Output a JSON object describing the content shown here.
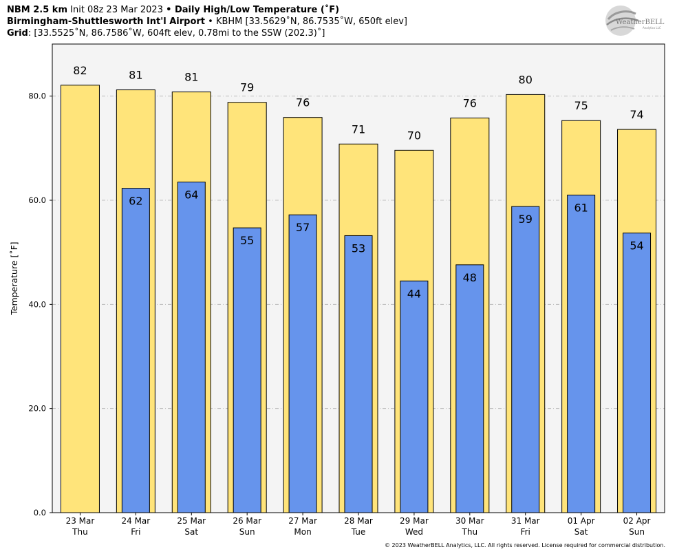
{
  "header": {
    "line1": {
      "model": "NBM 2.5 km",
      "init": " Init 08z 23 Mar 2023 ",
      "bullet": "•",
      "product": " Daily High/Low Temperature (˚F)"
    },
    "line2": {
      "station_name": "Birmingham-Shuttlesworth Int'l Airport",
      "details": " • KBHM [33.5629˚N, 86.7535˚W, 650ft elev]"
    },
    "line3": {
      "label": "Grid",
      "details": ": [33.5525˚N, 86.7586˚W, 604ft elev, 0.78mi to the SSW (202.3)˚]"
    }
  },
  "logo": {
    "text_main": "WeatherBELL",
    "text_sub": "Analytics LLC"
  },
  "copyright": "© 2023 WeatherBELL Analytics, LLC. All rights reserved. License required for commercial distribution.",
  "chart_data": {
    "type": "bar",
    "ylabel": "Temperature [˚F]",
    "xlabel": "",
    "ylim": [
      0,
      90
    ],
    "yticks": [
      0,
      20,
      40,
      60,
      80
    ],
    "ytick_labels": [
      "0.0",
      "20.0",
      "40.0",
      "60.0",
      "80.0"
    ],
    "grid": true,
    "categories": [
      {
        "date": "23 Mar",
        "day": "Thu"
      },
      {
        "date": "24 Mar",
        "day": "Fri"
      },
      {
        "date": "25 Mar",
        "day": "Sat"
      },
      {
        "date": "26 Mar",
        "day": "Sun"
      },
      {
        "date": "27 Mar",
        "day": "Mon"
      },
      {
        "date": "28 Mar",
        "day": "Tue"
      },
      {
        "date": "29 Mar",
        "day": "Wed"
      },
      {
        "date": "30 Mar",
        "day": "Thu"
      },
      {
        "date": "31 Mar",
        "day": "Fri"
      },
      {
        "date": "01 Apr",
        "day": "Sat"
      },
      {
        "date": "02 Apr",
        "day": "Sun"
      }
    ],
    "series": [
      {
        "key": "high",
        "values": [
          82.1,
          81.2,
          80.8,
          78.8,
          75.9,
          70.8,
          69.6,
          75.8,
          80.3,
          75.3,
          73.6
        ],
        "labels": [
          "82",
          "81",
          "81",
          "79",
          "76",
          "71",
          "70",
          "76",
          "80",
          "75",
          "74"
        ],
        "color": "#ffe47a"
      },
      {
        "key": "low",
        "values": [
          null,
          62.3,
          63.5,
          54.7,
          57.2,
          53.2,
          44.5,
          47.6,
          58.8,
          61.0,
          53.7
        ],
        "labels": [
          "",
          "62",
          "64",
          "55",
          "57",
          "53",
          "44",
          "48",
          "59",
          "61",
          "54"
        ],
        "color": "#6694ec"
      }
    ],
    "plot_background": "#f4f4f4"
  }
}
